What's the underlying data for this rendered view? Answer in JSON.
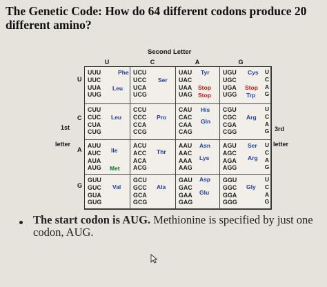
{
  "title": "The Genetic Code: How do 64 different codons produce 20 different amino?",
  "second_letter_label": "Second Letter",
  "first_letter_label_line1": "1st",
  "first_letter_label_line2": "letter",
  "third_letter_label": "3rd",
  "third_letter_label_line2": "letter",
  "column_headers": [
    "U",
    "C",
    "A",
    "G"
  ],
  "row_letters": [
    "U",
    "C",
    "A",
    "G"
  ],
  "third_letters": [
    "U",
    "C",
    "A",
    "G"
  ],
  "colors": {
    "blue": "#1b3fae",
    "red": "#c8181c",
    "green": "#0a7a1e"
  },
  "blocks": {
    "UU": {
      "codons": [
        "UUU",
        "UUC",
        "UUA",
        "UUG"
      ],
      "aa": [
        {
          "t": "Phe",
          "c": "blue"
        },
        {
          "t": "Leu",
          "c": "blue"
        }
      ]
    },
    "UC": {
      "codons": [
        "UCU",
        "UCC",
        "UCA",
        "UCG"
      ],
      "aa": [
        {
          "t": "Ser",
          "c": "blue"
        }
      ]
    },
    "UA": {
      "codons": [
        "UAU",
        "UAC",
        "UAA",
        "UAG"
      ],
      "aa": [
        {
          "t": "Tyr",
          "c": "blue"
        },
        {
          "t": "Stop",
          "c": "red"
        },
        {
          "t": "Stop",
          "c": "red"
        }
      ]
    },
    "UG": {
      "codons": [
        "UGU",
        "UGC",
        "UGA",
        "UGG"
      ],
      "aa": [
        {
          "t": "Cys",
          "c": "blue"
        },
        {
          "t": "Stop",
          "c": "red"
        },
        {
          "t": "Trp",
          "c": "blue"
        }
      ]
    },
    "CU": {
      "codons": [
        "CUU",
        "CUC",
        "CUA",
        "CUG"
      ],
      "aa": [
        {
          "t": "Leu",
          "c": "blue"
        }
      ]
    },
    "CC": {
      "codons": [
        "CCU",
        "CCC",
        "CCA",
        "CCG"
      ],
      "aa": [
        {
          "t": "Pro",
          "c": "blue"
        }
      ]
    },
    "CA": {
      "codons": [
        "CAU",
        "CAC",
        "CAA",
        "CAG"
      ],
      "aa": [
        {
          "t": "His",
          "c": "blue"
        },
        {
          "t": "Gln",
          "c": "blue"
        }
      ]
    },
    "CG": {
      "codons": [
        "CGU",
        "CGC",
        "CGA",
        "CGG"
      ],
      "aa": [
        {
          "t": "Arg",
          "c": "blue"
        }
      ]
    },
    "AU": {
      "codons": [
        "AUU",
        "AUC",
        "AUA",
        "AUG"
      ],
      "aa": [
        {
          "t": "Ile",
          "c": "blue"
        },
        {
          "t": "Met",
          "c": "green"
        }
      ]
    },
    "AC": {
      "codons": [
        "ACU",
        "ACC",
        "ACA",
        "ACG"
      ],
      "aa": [
        {
          "t": "Thr",
          "c": "blue"
        }
      ]
    },
    "AA": {
      "codons": [
        "AAU",
        "AAC",
        "AAA",
        "AAG"
      ],
      "aa": [
        {
          "t": "Asn",
          "c": "blue"
        },
        {
          "t": "Lys",
          "c": "blue"
        }
      ]
    },
    "AG": {
      "codons": [
        "AGU",
        "AGC",
        "AGA",
        "AGG"
      ],
      "aa": [
        {
          "t": "Ser",
          "c": "blue"
        },
        {
          "t": "Arg",
          "c": "blue"
        }
      ]
    },
    "GU": {
      "codons": [
        "GUU",
        "GUC",
        "GUA",
        "GUG"
      ],
      "aa": [
        {
          "t": "Val",
          "c": "blue"
        }
      ]
    },
    "GC": {
      "codons": [
        "GCU",
        "GCC",
        "GCA",
        "GCG"
      ],
      "aa": [
        {
          "t": "Ala",
          "c": "blue"
        }
      ]
    },
    "GA": {
      "codons": [
        "GAU",
        "GAC",
        "GAA",
        "GAG"
      ],
      "aa": [
        {
          "t": "Asp",
          "c": "blue"
        },
        {
          "t": "Glu",
          "c": "blue"
        }
      ]
    },
    "GG": {
      "codons": [
        "GGU",
        "GGC",
        "GGA",
        "GGG"
      ],
      "aa": [
        {
          "t": "Gly",
          "c": "blue"
        }
      ]
    }
  },
  "bullet": {
    "bold": "The start codon is AUG.",
    "rest": " Methionine is specified by just one codon, AUG."
  }
}
